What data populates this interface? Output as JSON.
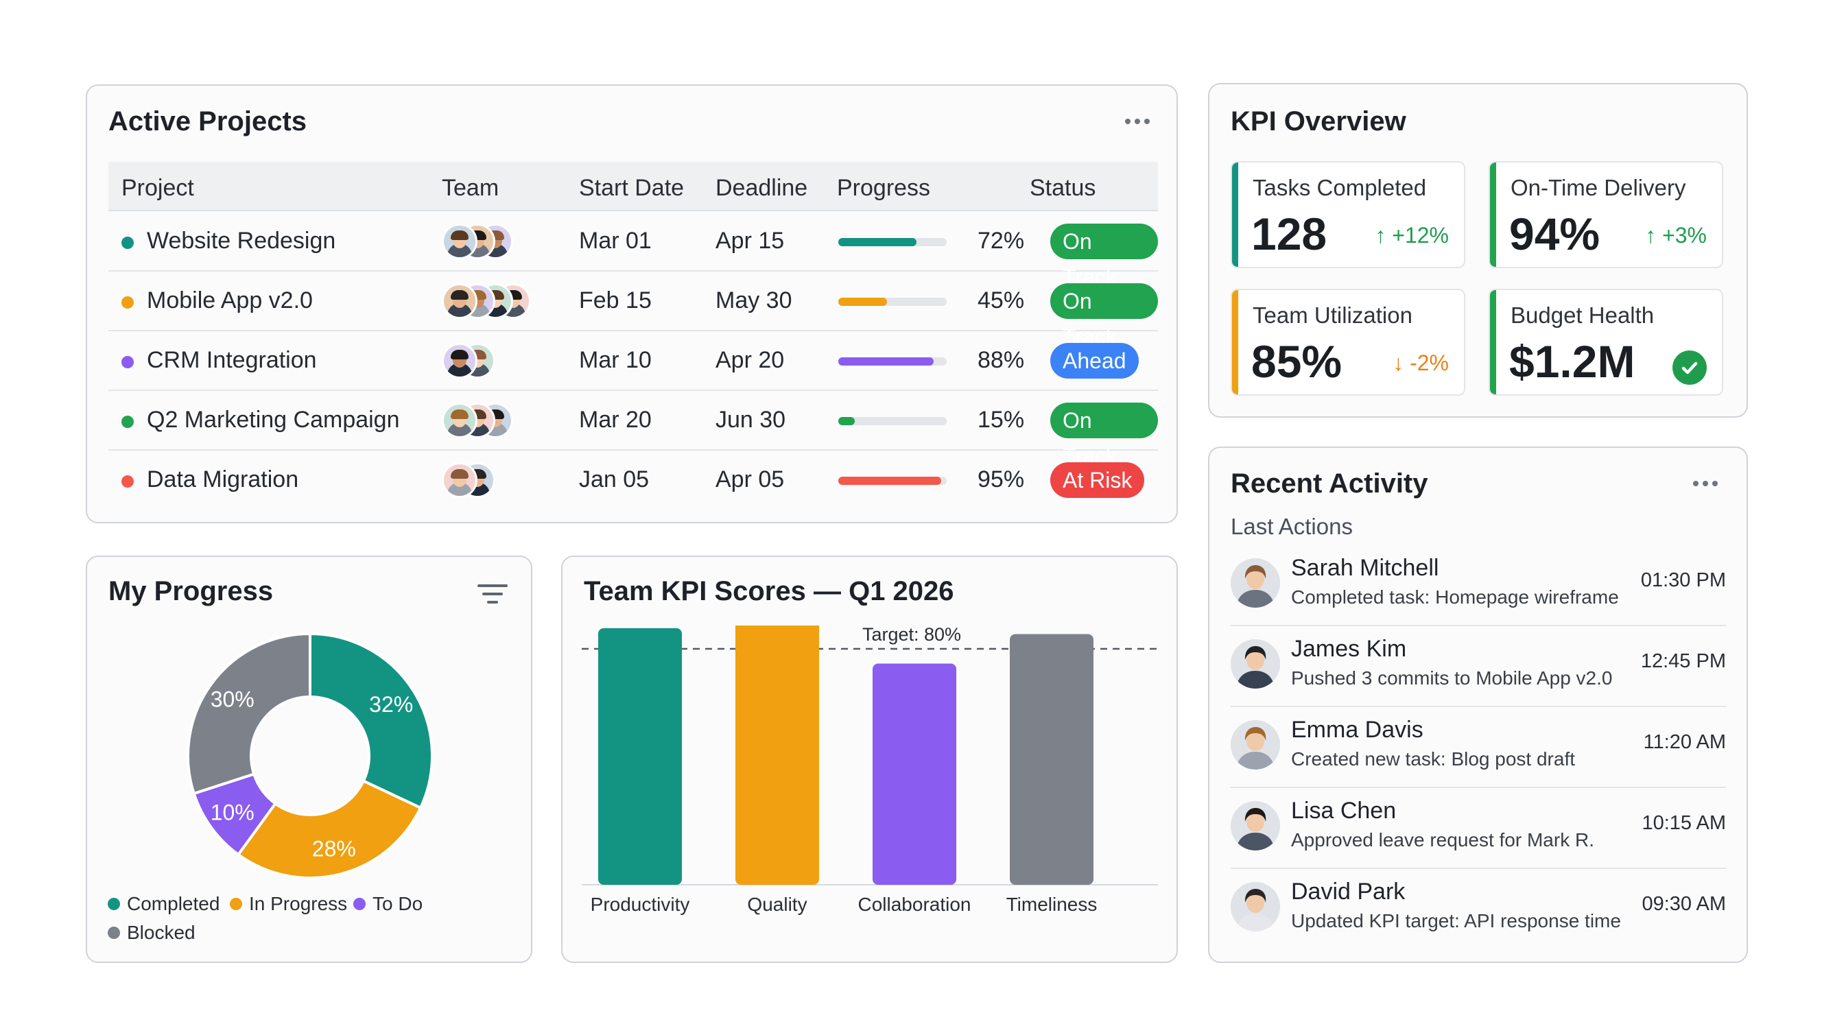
{
  "projects": {
    "title": "Active Projects",
    "columns": [
      "Project",
      "Team",
      "Start Date",
      "Deadline",
      "Progress",
      "Status"
    ],
    "rows": [
      {
        "name": "Website Redesign",
        "dot_color": "#139483",
        "team_size": 3,
        "start": "Mar 01",
        "deadline": "Apr 15",
        "progress": 72,
        "progress_label": "72%",
        "bar_color": "#139483",
        "status": "On Track",
        "status_color": "#21a350"
      },
      {
        "name": "Mobile App v2.0",
        "dot_color": "#f0a010",
        "team_size": 4,
        "start": "Feb 15",
        "deadline": "May 30",
        "progress": 45,
        "progress_label": "45%",
        "bar_color": "#f0a010",
        "status": "On Track",
        "status_color": "#21a350"
      },
      {
        "name": "CRM Integration",
        "dot_color": "#8a5cf0",
        "team_size": 2,
        "start": "Mar 10",
        "deadline": "Apr 20",
        "progress": 88,
        "progress_label": "88%",
        "bar_color": "#8a5cf0",
        "status": "Ahead",
        "status_color": "#3b82f6"
      },
      {
        "name": "Q2 Marketing Campaign",
        "dot_color": "#21a350",
        "team_size": 3,
        "start": "Mar 20",
        "deadline": "Jun 30",
        "progress": 15,
        "progress_label": "15%",
        "bar_color": "#21a350",
        "status": "On Track",
        "status_color": "#21a350"
      },
      {
        "name": "Data Migration",
        "dot_color": "#f2594a",
        "team_size": 2,
        "start": "Jan 05",
        "deadline": "Apr 05",
        "progress": 95,
        "progress_label": "95%",
        "bar_color": "#f2594a",
        "status": "At Risk",
        "status_color": "#ef4444"
      }
    ]
  },
  "kpi": {
    "title": "KPI Overview",
    "tiles": [
      {
        "label": "Tasks Completed",
        "value": "128",
        "delta": "↑ +12%",
        "delta_color": "#1f9d4d",
        "accent": "#139483"
      },
      {
        "label": "On-Time Delivery",
        "value": "94%",
        "delta": "↑ +3%",
        "delta_color": "#1f9d4d",
        "accent": "#21a350"
      },
      {
        "label": "Team Utilization",
        "value": "85%",
        "delta": "↓ -2%",
        "delta_color": "#e8811a",
        "accent": "#f0a010"
      },
      {
        "label": "Budget Health",
        "value": "$1.2M",
        "delta": "",
        "check": true,
        "accent": "#21a350"
      }
    ]
  },
  "my_progress": {
    "title": "My Progress",
    "legend": [
      {
        "label": "Completed",
        "color": "#139483"
      },
      {
        "label": "In Progress",
        "color": "#f0a010"
      },
      {
        "label": "To Do",
        "color": "#8a5cf0"
      },
      {
        "label": "Blocked",
        "color": "#7d828a"
      }
    ]
  },
  "team_kpi": {
    "title": "Team KPI Scores — Q1 2026",
    "target_label": "Target: 80%"
  },
  "chart_data": [
    {
      "type": "pie",
      "title": "My Progress",
      "categories": [
        "Completed",
        "In Progress",
        "To Do",
        "Blocked"
      ],
      "values": [
        32,
        28,
        10,
        30
      ],
      "labels": [
        "32%",
        "28%",
        "10%",
        "30%"
      ],
      "colors": [
        "#139483",
        "#f0a010",
        "#8a5cf0",
        "#7d828a"
      ],
      "donut": true,
      "legend": "bottom"
    },
    {
      "type": "bar",
      "title": "Team KPI Scores — Q1 2026",
      "categories": [
        "Productivity",
        "Quality",
        "Collaboration",
        "Timeliness"
      ],
      "values": [
        87,
        92,
        75,
        85
      ],
      "labels": [
        "87%",
        "92%",
        "",
        "85%"
      ],
      "colors": [
        "#139483",
        "#f0a010",
        "#8a5cf0",
        "#7d828a"
      ],
      "target": 80,
      "ylim": [
        0,
        100
      ]
    }
  ],
  "activity": {
    "title": "Recent Activity",
    "subtitle": "Last Actions",
    "items": [
      {
        "name": "Sarah Mitchell",
        "desc": "Completed task: Homepage wireframe",
        "time": "01:30 PM",
        "hair": "#8a5a3a",
        "shirt": "#6b7280"
      },
      {
        "name": "James Kim",
        "desc": "Pushed 3 commits to Mobile App v2.0",
        "time": "12:45 PM",
        "hair": "#222222",
        "shirt": "#374151"
      },
      {
        "name": "Emma Davis",
        "desc": "Created new task: Blog post draft",
        "time": "11:20 AM",
        "hair": "#a0692e",
        "shirt": "#9ca3af"
      },
      {
        "name": "Lisa Chen",
        "desc": "Approved leave request for Mark R.",
        "time": "10:15 AM",
        "hair": "#1f1a17",
        "shirt": "#4b5563"
      },
      {
        "name": "David Park",
        "desc": "Updated KPI target: API response time",
        "time": "09:30 AM",
        "hair": "#2a2522",
        "shirt": "#e5e7eb"
      }
    ]
  }
}
